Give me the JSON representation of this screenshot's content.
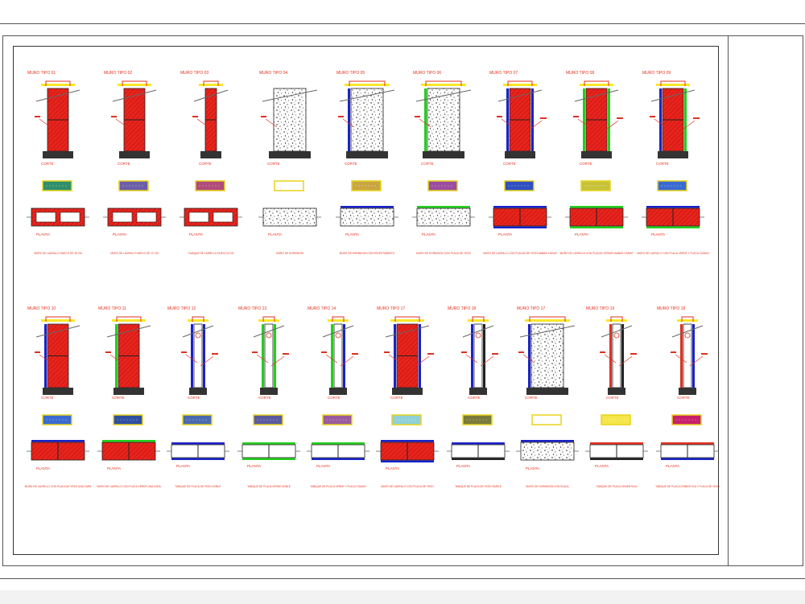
{
  "rows": [
    {
      "items": [
        {
          "title": "MURO TIPO 01",
          "corte": "CORTE",
          "planta": "PLANTA",
          "kind": "brick",
          "faces": [],
          "swatch": "#2f8f6a",
          "note": "MURO DE LADRILLO HUECO DE 18 CM"
        },
        {
          "title": "MURO TIPO 02",
          "corte": "CORTE",
          "planta": "PLANTA",
          "kind": "brick",
          "faces": [],
          "swatch": "#6b5fa8",
          "note": "MURO DE LADRILLO HUECO DE 12 CM"
        },
        {
          "title": "MURO TIPO 03",
          "corte": "CORTE",
          "planta": "PLANTA",
          "kind": "brick-thin",
          "faces": [],
          "swatch": "#b04c7a",
          "note": "TABIQUE DE LADRILLO HUECO 8 CM"
        },
        {
          "title": "MURO TIPO 04",
          "corte": "CORTE",
          "planta": "PLANTA",
          "kind": "concrete",
          "faces": [],
          "swatch": "#ffffff",
          "note": "MURO DE HORMIGON"
        },
        {
          "title": "MURO TIPO 05",
          "corte": "CORTE",
          "planta": "PLANTA",
          "kind": "concrete",
          "faces": [
            "blue"
          ],
          "swatch": "#c9a642",
          "note": "MURO DE HORMIGON CON REVESTIMIENTO"
        },
        {
          "title": "MURO TIPO 06",
          "corte": "CORTE",
          "planta": "PLANTA",
          "kind": "concrete",
          "faces": [
            "green"
          ],
          "swatch": "#9a4d9e",
          "note": "MURO DE HORMIGON CON PLACA DE YESO"
        },
        {
          "title": "MURO TIPO 07",
          "corte": "CORTE",
          "planta": "PLANTA",
          "kind": "brick",
          "faces": [
            "blue",
            "blue"
          ],
          "swatch": "#2f4fc0",
          "note": "MURO DE LADRILLO CON PLACAS DE YESO AMBAS CARAS"
        },
        {
          "title": "MURO TIPO 08",
          "corte": "CORTE",
          "planta": "PLANTA",
          "kind": "brick",
          "faces": [
            "green",
            "green"
          ],
          "swatch": "#c8c23a",
          "note": "MURO DE LADRILLO CON PLACAS VERDES AMBAS CARAS"
        },
        {
          "title": "MURO TIPO 09",
          "corte": "CORTE",
          "planta": "PLANTA",
          "kind": "brick",
          "faces": [
            "blue",
            "green"
          ],
          "swatch": "#3a6ad0",
          "note": "MURO DE LADRILLO CON PLACA VERDE Y PLACA COMUN"
        }
      ]
    },
    {
      "items": [
        {
          "title": "MURO TIPO 10",
          "corte": "CORTE",
          "planta": "PLANTA",
          "kind": "brick",
          "faces": [
            "blue"
          ],
          "swatch": "#3a6ad0",
          "note": "MURO DE LADRILLO CON PLACA DE YESO UNA CARA"
        },
        {
          "title": "MURO TIPO 11",
          "corte": "CORTE",
          "planta": "PLANTA",
          "kind": "brick",
          "faces": [
            "green"
          ],
          "swatch": "#2f4fa0",
          "note": "MURO DE LADRILLO CON PLACA VERDE UNA CARA"
        },
        {
          "title": "MURO TIPO 12",
          "corte": "CORTE",
          "planta": "PLANTA",
          "kind": "drywall",
          "faces": [
            "blue",
            "blue"
          ],
          "swatch": "#4a6ab0",
          "note": "TABIQUE DE PLACA DE YESO DOBLE"
        },
        {
          "title": "MURO TIPO 13",
          "corte": "CORTE",
          "planta": "PLANTA",
          "kind": "drywall",
          "faces": [
            "green",
            "green"
          ],
          "swatch": "#5a5aa0",
          "note": "TABIQUE DE PLACA VERDE DOBLE"
        },
        {
          "title": "MURO TIPO 14",
          "corte": "CORTE",
          "planta": "PLANTA",
          "kind": "drywall",
          "faces": [
            "green",
            "blue"
          ],
          "swatch": "#9a5a9e",
          "note": "TABIQUE DE PLACA VERDE Y PLACA COMUN"
        },
        {
          "title": "MURO TIPO 17",
          "corte": "CORTE",
          "planta": "PLANTA",
          "kind": "brick",
          "faces": [
            "blue",
            "blue"
          ],
          "swatch": "#8fd0d8",
          "note": "MURO DE LADRILLO CON PLACA DE YESO"
        },
        {
          "title": "MURO TIPO 18",
          "corte": "CORTE",
          "planta": "PLANTA",
          "kind": "drywall",
          "faces": [
            "blue",
            "dark"
          ],
          "swatch": "#7a7a3a",
          "note": "TABIQUE DE PLACA DE YESO SIMPLE"
        },
        {
          "title": "MURO TIPO 17",
          "corte": "CORTE",
          "planta": "PLANTA",
          "kind": "concrete",
          "faces": [
            "blue"
          ],
          "swatch": "#ffffff",
          "note": "MURO DE HORMIGON CON PLACA"
        },
        {
          "title": "MURO TIPO 19",
          "corte": "CORTE",
          "planta": "PLANTA",
          "kind": "drywall",
          "faces": [
            "red",
            "dark"
          ],
          "swatch": "#f4e64a",
          "note": "TABIQUE DE PLACA CEMENTICIA"
        },
        {
          "title": "MURO TIPO 18",
          "corte": "CORTE",
          "planta": "PLANTA",
          "kind": "drywall",
          "faces": [
            "red",
            "blue"
          ],
          "swatch": "#c8206a",
          "note": "TABIQUE DE PLACA CEMENTICIA Y PLACA DE YESO"
        }
      ]
    }
  ]
}
